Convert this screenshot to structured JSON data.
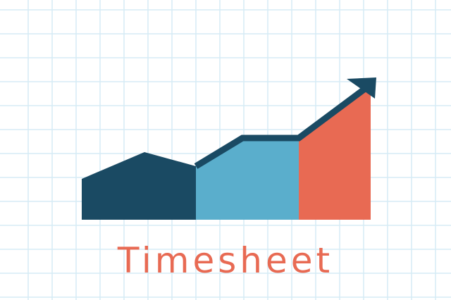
{
  "title": "Timesheet",
  "icon": "rising-area-chart-with-arrow-icon",
  "colors": {
    "grid": "#d6ecf5",
    "dark_teal": "#1a4a63",
    "light_blue": "#5aaecc",
    "coral": "#e86a53",
    "arrow": "#1a4a63"
  }
}
